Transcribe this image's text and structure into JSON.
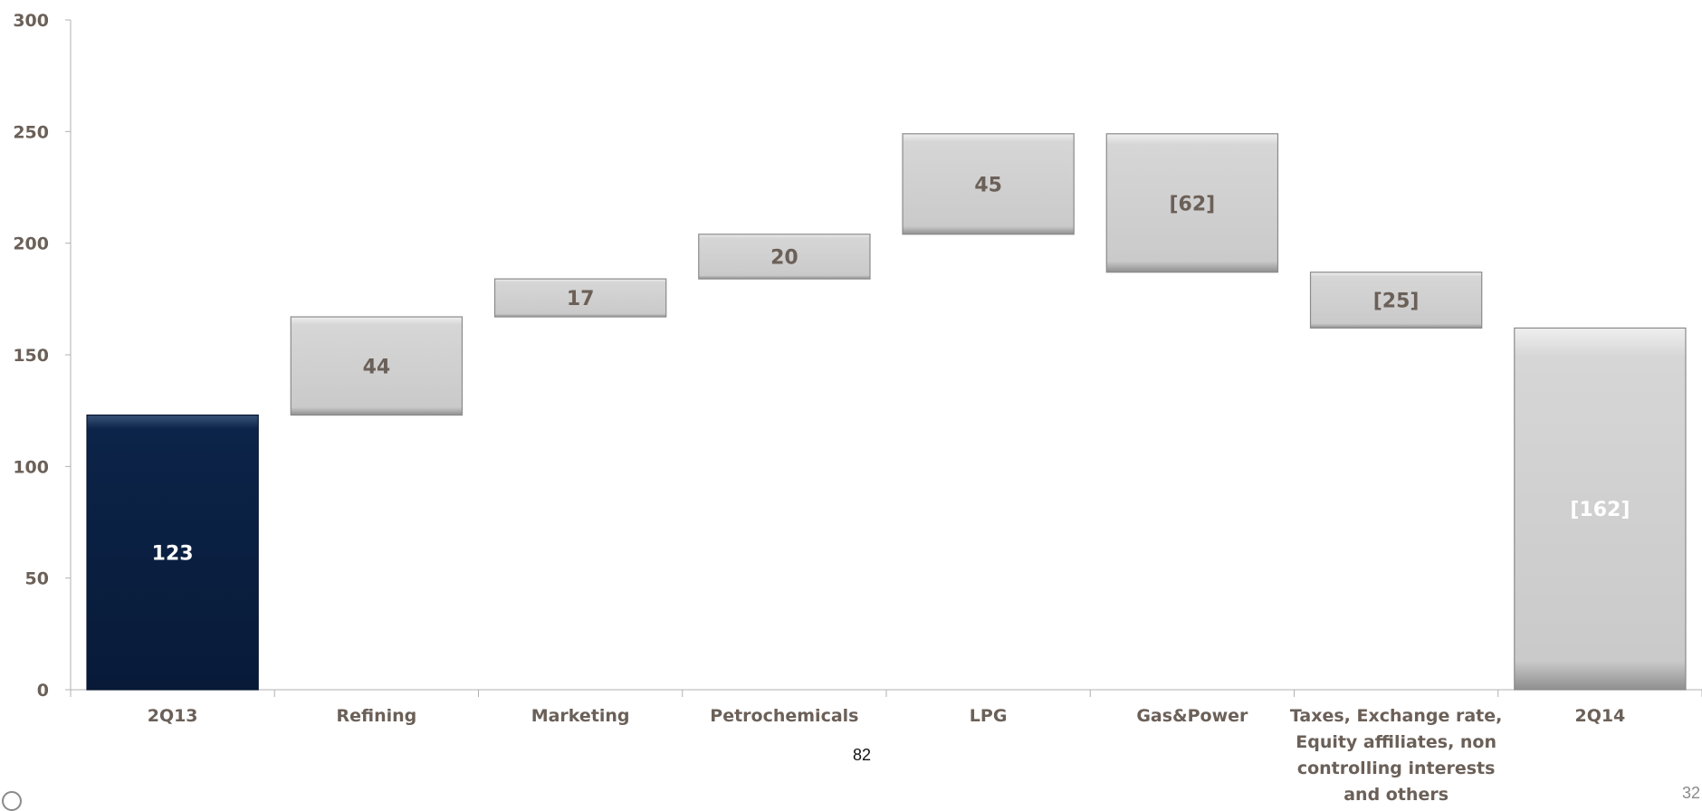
{
  "footnote": "82",
  "page_number": "32",
  "colors": {
    "start_bar": "#0b2348",
    "step_bar": "#cfcfcf",
    "axis": "#b0b0b0",
    "text": "#6b6058"
  },
  "chart_data": {
    "type": "bar",
    "subtype": "waterfall",
    "title": "",
    "xlabel": "",
    "ylabel": "",
    "ylim": [
      0,
      300
    ],
    "yticks": [
      0,
      50,
      100,
      150,
      200,
      250,
      300
    ],
    "categories": [
      "2Q13",
      "Refining",
      "Marketing",
      "Petrochemicals",
      "LPG",
      "Gas&Power",
      "Taxes, Exchange rate, Equity affiliates, non controlling interests and others",
      "2Q14"
    ],
    "category_lines": [
      [
        "2Q13"
      ],
      [
        "Refining"
      ],
      [
        "Marketing"
      ],
      [
        "Petrochemicals"
      ],
      [
        "LPG"
      ],
      [
        "Gas&Power"
      ],
      [
        "Taxes, Exchange rate,",
        "Equity affiliates, non",
        "controlling interests",
        "and others"
      ],
      [
        "2Q14"
      ]
    ],
    "bars": [
      {
        "base": 0,
        "top": 123,
        "label": "123",
        "kind": "start"
      },
      {
        "base": 123,
        "top": 167,
        "label": "44",
        "kind": "step"
      },
      {
        "base": 167,
        "top": 184,
        "label": "17",
        "kind": "step"
      },
      {
        "base": 184,
        "top": 204,
        "label": "20",
        "kind": "step"
      },
      {
        "base": 204,
        "top": 249,
        "label": "45",
        "kind": "step"
      },
      {
        "base": 187,
        "top": 249,
        "label": "[62]",
        "kind": "step"
      },
      {
        "base": 162,
        "top": 187,
        "label": "[25]",
        "kind": "step"
      },
      {
        "base": 0,
        "top": 162,
        "label": "[162]",
        "kind": "end"
      }
    ]
  }
}
